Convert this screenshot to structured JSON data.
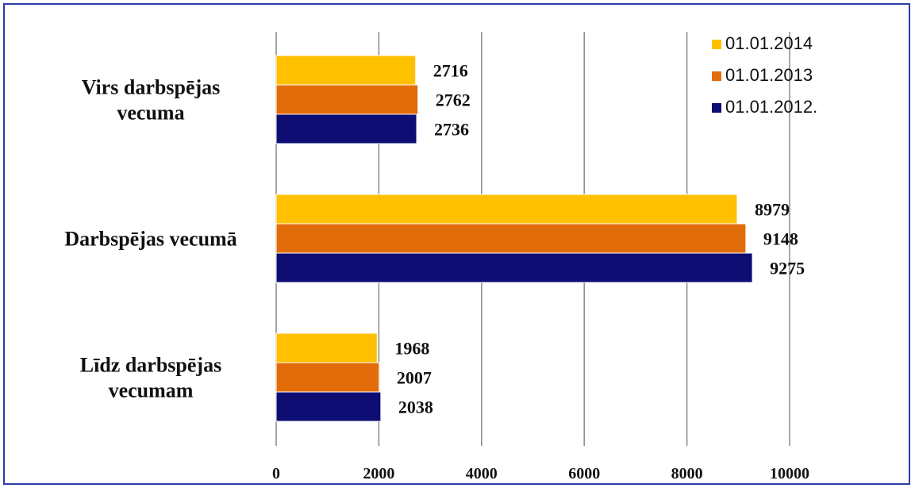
{
  "chart_data": {
    "type": "bar",
    "orientation": "horizontal",
    "categories": [
      "Virs darbspējas\nvecuma",
      "Darbspējas vecumā",
      "Līdz darbspējas\nvecumam"
    ],
    "series": [
      {
        "name": "01.01.2014",
        "color": "#ffc000",
        "values": [
          2716,
          8979,
          1968
        ]
      },
      {
        "name": "01.01.2013",
        "color": "#e36c0a",
        "values": [
          2762,
          9148,
          2007
        ]
      },
      {
        "name": "01.01.2012.",
        "color": "#0d0d73",
        "values": [
          2736,
          9275,
          2038
        ]
      }
    ],
    "xlim": [
      0,
      10000
    ],
    "x_ticks": [
      "0",
      "2000",
      "4000",
      "6000",
      "8000",
      "10000"
    ],
    "grid": "vertical",
    "legend_position": "top-right",
    "title": "",
    "xlabel": "",
    "ylabel": ""
  }
}
